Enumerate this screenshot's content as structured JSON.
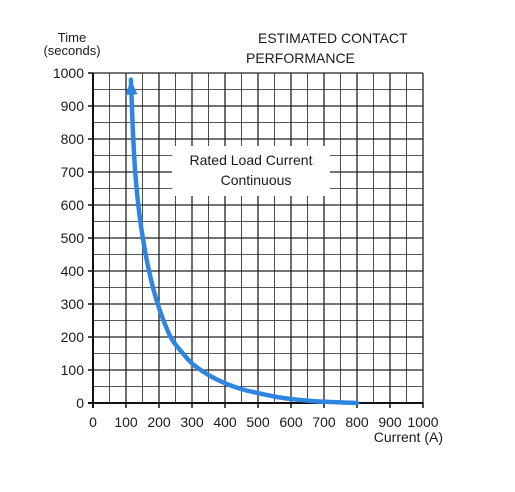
{
  "chart_data": {
    "type": "line",
    "title_lines": [
      "ESTIMATED CONTACT",
      "PERFORMANCE"
    ],
    "ylabel_lines": [
      "Time",
      "(seconds)"
    ],
    "xlabel": "Current (A)",
    "xlim": [
      0,
      1000
    ],
    "ylim": [
      0,
      1000
    ],
    "x_ticks": [
      0,
      100,
      200,
      300,
      400,
      500,
      600,
      700,
      800,
      900,
      1000
    ],
    "y_ticks": [
      0,
      100,
      200,
      300,
      400,
      500,
      600,
      700,
      800,
      900,
      1000
    ],
    "grid": true,
    "annotation_lines": [
      "Rated Load Current",
      "Continuous"
    ],
    "series": [
      {
        "color": "#2f86e0",
        "x": [
          115,
          118,
          122,
          128,
          135,
          145,
          158,
          172,
          190,
          210,
          235,
          260,
          300,
          350,
          400,
          450,
          500,
          560,
          620,
          680,
          740,
          800
        ],
        "y": [
          980,
          900,
          800,
          700,
          620,
          540,
          460,
          390,
          320,
          260,
          200,
          165,
          120,
          85,
          60,
          42,
          30,
          18,
          10,
          5,
          2,
          0
        ]
      }
    ]
  }
}
